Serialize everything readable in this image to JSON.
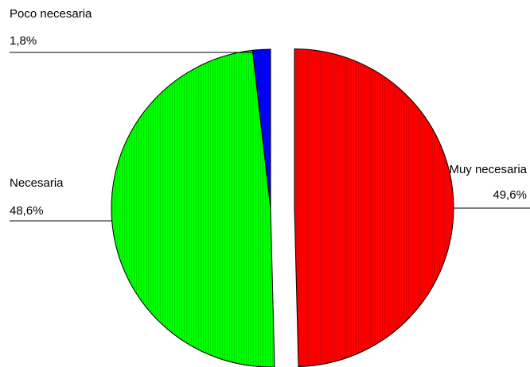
{
  "chart_data": {
    "type": "pie",
    "title": "",
    "exploded": true,
    "slices": [
      {
        "label": "Muy necesaria",
        "value": 49.6,
        "value_label": "49,6%",
        "color": "#ff0000"
      },
      {
        "label": "Necesaria",
        "value": 48.6,
        "value_label": "48,6%",
        "color": "#00ff00"
      },
      {
        "label": "Poco necesaria",
        "value": 1.8,
        "value_label": "1,8%",
        "color": "#0000ff"
      }
    ]
  }
}
